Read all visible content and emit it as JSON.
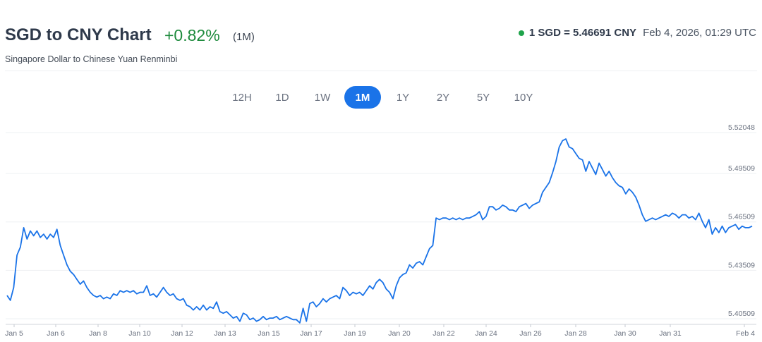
{
  "header": {
    "title": "SGD to CNY Chart",
    "change": "+0.82%",
    "period": "(1M)",
    "subtitle": "Singapore Dollar to Chinese Yuan Renminbi",
    "rate": "1 SGD = 5.46691 CNY",
    "timestamp": "Feb 4, 2026, 01:29 UTC",
    "status_color": "#1ea34a",
    "change_color": "#1d8a3c"
  },
  "tabs": [
    {
      "label": "12H",
      "active": false
    },
    {
      "label": "1D",
      "active": false
    },
    {
      "label": "1W",
      "active": false
    },
    {
      "label": "1M",
      "active": true
    },
    {
      "label": "1Y",
      "active": false
    },
    {
      "label": "2Y",
      "active": false
    },
    {
      "label": "5Y",
      "active": false
    },
    {
      "label": "10Y",
      "active": false
    }
  ],
  "chart_data": {
    "type": "line",
    "title": "",
    "xlabel": "",
    "ylabel": "",
    "line_color": "#1a73e8",
    "grid": true,
    "x_ticks": [
      "Jan 5",
      "Jan 6",
      "Jan 8",
      "Jan 10",
      "Jan 12",
      "Jan 13",
      "Jan 15",
      "Jan 17",
      "Jan 19",
      "Jan 20",
      "Jan 22",
      "Jan 24",
      "Jan 26",
      "Jan 28",
      "Jan 30",
      "Jan 31",
      "Feb 4"
    ],
    "y_ticks": [
      "5.52048",
      "5.49509",
      "5.46509",
      "5.43509",
      "5.40509"
    ],
    "ylim": [
      5.40509,
      5.52048
    ],
    "series": [
      {
        "values": [
          5.4195,
          5.4165,
          5.4245,
          5.4445,
          5.4495,
          5.4615,
          5.4545,
          5.4595,
          5.4565,
          5.4595,
          5.4555,
          5.4575,
          5.4545,
          5.4575,
          5.4555,
          5.4605,
          5.4505,
          5.4445,
          5.4385,
          5.4345,
          5.4325,
          5.4295,
          5.4265,
          5.4285,
          5.4245,
          5.4215,
          5.4195,
          5.4185,
          5.4195,
          5.4175,
          5.4185,
          5.4175,
          5.4205,
          5.4195,
          5.4225,
          5.4215,
          5.4225,
          5.4215,
          5.4225,
          5.4205,
          5.4215,
          5.4215,
          5.4255,
          5.4195,
          5.4205,
          5.4185,
          5.4215,
          5.4245,
          5.4215,
          5.4195,
          5.4205,
          5.4175,
          5.4165,
          5.4175,
          5.4135,
          5.4125,
          5.4105,
          5.4125,
          5.4105,
          5.4135,
          5.4105,
          5.4125,
          5.4115,
          5.4155,
          5.4095,
          5.4085,
          5.4095,
          5.4075,
          5.4055,
          5.4065,
          5.4035,
          5.4085,
          5.4075,
          5.4045,
          5.4055,
          5.4035,
          5.4045,
          5.4065,
          5.4045,
          5.4055,
          5.4055,
          5.4065,
          5.4045,
          5.4055,
          5.4065,
          5.4055,
          5.4045,
          5.4045,
          5.4025,
          5.4115,
          5.4035,
          5.4145,
          5.4155,
          5.4125,
          5.4145,
          5.4175,
          5.4155,
          5.4175,
          5.4185,
          5.4195,
          5.4175,
          5.4245,
          5.4225,
          5.4195,
          5.4215,
          5.4205,
          5.4215,
          5.4195,
          5.4225,
          5.4255,
          5.4235,
          5.4275,
          5.4295,
          5.4275,
          5.4235,
          5.4215,
          5.4175,
          5.4255,
          5.4305,
          5.4325,
          5.4335,
          5.4385,
          5.4365,
          5.4395,
          5.4405,
          5.4385,
          5.4435,
          5.4485,
          5.4505,
          5.4675,
          5.4665,
          5.4675,
          5.4675,
          5.4665,
          5.4675,
          5.4665,
          5.4675,
          5.4665,
          5.4675,
          5.4675,
          5.4685,
          5.4695,
          5.4715,
          5.4665,
          5.4685,
          5.4745,
          5.4745,
          5.4725,
          5.4735,
          5.4755,
          5.4745,
          5.4725,
          5.4725,
          5.4715,
          5.4745,
          5.4755,
          5.4765,
          5.4735,
          5.4755,
          5.4765,
          5.4775,
          5.4835,
          5.4865,
          5.4895,
          5.4955,
          5.5025,
          5.5115,
          5.5155,
          5.5165,
          5.5115,
          5.5105,
          5.5075,
          5.5045,
          5.5035,
          5.4965,
          5.5025,
          5.4985,
          5.4945,
          5.5015,
          5.4975,
          5.4935,
          5.4965,
          5.4925,
          5.4895,
          5.4875,
          5.4865,
          5.4825,
          5.4855,
          5.4835,
          5.4805,
          5.4755,
          5.4695,
          5.4655,
          5.4665,
          5.4675,
          5.4665,
          5.4675,
          5.4685,
          5.4695,
          5.4685,
          5.4705,
          5.4695,
          5.4675,
          5.4695,
          5.4695,
          5.4675,
          5.4685,
          5.4665,
          5.4705,
          5.4655,
          5.4615,
          5.4665,
          5.4575,
          5.4615,
          5.4585,
          5.4625,
          5.4585,
          5.4615,
          5.4625,
          5.4635,
          5.4605,
          5.4625,
          5.4615,
          5.4615,
          5.4625
        ]
      }
    ]
  }
}
